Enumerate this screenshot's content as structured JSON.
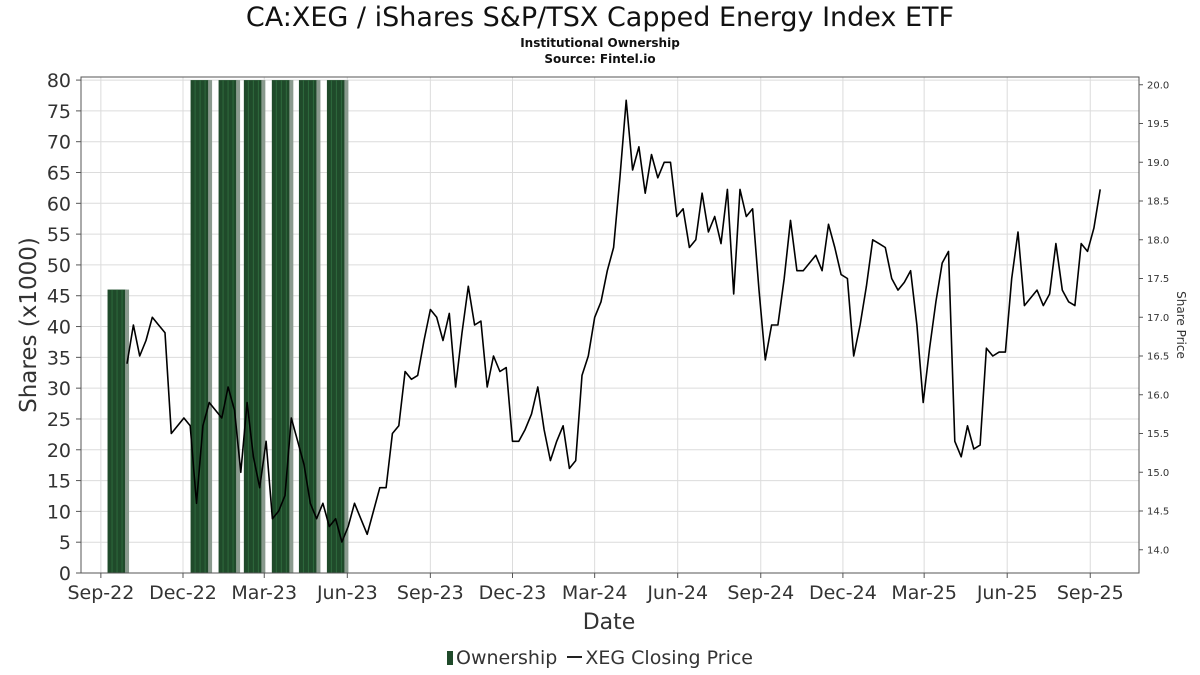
{
  "chart_data": {
    "type": "bar+line",
    "title": "CA:XEG / iShares S&P/TSX Capped Energy Index ETF",
    "subtitle": "Institutional Ownership",
    "source": "Source: Fintel.io",
    "xlabel": "Date",
    "ylabel_left": "Shares (x1000)",
    "ylabel_right": "Share Price",
    "x_tick_labels": [
      "Sep-22",
      "Dec-22",
      "Mar-23",
      "Jun-23",
      "Sep-23",
      "Dec-23",
      "Mar-24",
      "Jun-24",
      "Sep-24",
      "Dec-24",
      "Mar-25",
      "Jun-25",
      "Sep-25"
    ],
    "x_ticks": [
      "2022-09-01",
      "2022-12-01",
      "2023-03-01",
      "2023-06-01",
      "2023-09-01",
      "2023-12-01",
      "2024-03-01",
      "2024-06-01",
      "2024-09-01",
      "2024-12-01",
      "2025-03-01",
      "2025-06-01",
      "2025-09-01"
    ],
    "xlim": [
      "2022-08-10",
      "2025-10-25"
    ],
    "y_left_lim": [
      0,
      80.5
    ],
    "y_left_ticks": [
      0,
      5,
      10,
      15,
      20,
      25,
      30,
      35,
      40,
      45,
      50,
      55,
      60,
      65,
      70,
      75,
      80
    ],
    "y_right_lim": [
      13.7,
      20.1
    ],
    "y_right_ticks": [
      "14.0",
      "14.5",
      "15.0",
      "15.5",
      "16.0",
      "16.5",
      "17.0",
      "17.5",
      "18.0",
      "18.5",
      "19.0",
      "19.5",
      "20.0"
    ],
    "grid": true,
    "legend_position": "bottom-center",
    "colors": {
      "ownership": "#1f4a2a",
      "price": "#000000"
    },
    "series": [
      {
        "name": "Ownership",
        "kind": "bar",
        "points": [
          {
            "x": "2022-09-30",
            "y": 46
          },
          {
            "x": "2022-12-31",
            "y": 80
          },
          {
            "x": "2023-01-31",
            "y": 80
          },
          {
            "x": "2023-02-28",
            "y": 80
          },
          {
            "x": "2023-03-31",
            "y": 80
          },
          {
            "x": "2023-04-30",
            "y": 80
          },
          {
            "x": "2023-05-31",
            "y": 80
          }
        ]
      },
      {
        "name": "XEG Closing Price",
        "kind": "line",
        "points": [
          {
            "x": "2022-09-30",
            "y": 16.4
          },
          {
            "x": "2022-10-07",
            "y": 16.9
          },
          {
            "x": "2022-10-14",
            "y": 16.5
          },
          {
            "x": "2022-10-21",
            "y": 16.7
          },
          {
            "x": "2022-10-28",
            "y": 17.0
          },
          {
            "x": "2022-11-04",
            "y": 16.9
          },
          {
            "x": "2022-11-11",
            "y": 16.8
          },
          {
            "x": "2022-11-18",
            "y": 15.5
          },
          {
            "x": "2022-11-25",
            "y": 15.6
          },
          {
            "x": "2022-12-02",
            "y": 15.7
          },
          {
            "x": "2022-12-09",
            "y": 15.6
          },
          {
            "x": "2022-12-16",
            "y": 14.6
          },
          {
            "x": "2022-12-23",
            "y": 15.6
          },
          {
            "x": "2022-12-30",
            "y": 15.9
          },
          {
            "x": "2023-01-06",
            "y": 15.8
          },
          {
            "x": "2023-01-13",
            "y": 15.7
          },
          {
            "x": "2023-01-20",
            "y": 16.1
          },
          {
            "x": "2023-01-27",
            "y": 15.8
          },
          {
            "x": "2023-02-03",
            "y": 15.0
          },
          {
            "x": "2023-02-10",
            "y": 15.9
          },
          {
            "x": "2023-02-17",
            "y": 15.2
          },
          {
            "x": "2023-02-24",
            "y": 14.8
          },
          {
            "x": "2023-03-03",
            "y": 15.4
          },
          {
            "x": "2023-03-10",
            "y": 14.4
          },
          {
            "x": "2023-03-17",
            "y": 14.5
          },
          {
            "x": "2023-03-24",
            "y": 14.7
          },
          {
            "x": "2023-03-31",
            "y": 15.7
          },
          {
            "x": "2023-04-07",
            "y": 15.4
          },
          {
            "x": "2023-04-14",
            "y": 15.1
          },
          {
            "x": "2023-04-21",
            "y": 14.6
          },
          {
            "x": "2023-04-28",
            "y": 14.4
          },
          {
            "x": "2023-05-05",
            "y": 14.6
          },
          {
            "x": "2023-05-12",
            "y": 14.3
          },
          {
            "x": "2023-05-19",
            "y": 14.4
          },
          {
            "x": "2023-05-26",
            "y": 14.1
          },
          {
            "x": "2023-06-02",
            "y": 14.3
          },
          {
            "x": "2023-06-09",
            "y": 14.6
          },
          {
            "x": "2023-06-16",
            "y": 14.4
          },
          {
            "x": "2023-06-23",
            "y": 14.2
          },
          {
            "x": "2023-06-30",
            "y": 14.5
          },
          {
            "x": "2023-07-07",
            "y": 14.8
          },
          {
            "x": "2023-07-14",
            "y": 14.8
          },
          {
            "x": "2023-07-21",
            "y": 15.5
          },
          {
            "x": "2023-07-28",
            "y": 15.6
          },
          {
            "x": "2023-08-04",
            "y": 16.3
          },
          {
            "x": "2023-08-11",
            "y": 16.2
          },
          {
            "x": "2023-08-18",
            "y": 16.25
          },
          {
            "x": "2023-08-25",
            "y": 16.7
          },
          {
            "x": "2023-09-01",
            "y": 17.1
          },
          {
            "x": "2023-09-08",
            "y": 17.0
          },
          {
            "x": "2023-09-15",
            "y": 16.7
          },
          {
            "x": "2023-09-22",
            "y": 17.05
          },
          {
            "x": "2023-09-29",
            "y": 16.1
          },
          {
            "x": "2023-10-06",
            "y": 16.8
          },
          {
            "x": "2023-10-13",
            "y": 17.4
          },
          {
            "x": "2023-10-20",
            "y": 16.9
          },
          {
            "x": "2023-10-27",
            "y": 16.95
          },
          {
            "x": "2023-11-03",
            "y": 16.1
          },
          {
            "x": "2023-11-10",
            "y": 16.5
          },
          {
            "x": "2023-11-17",
            "y": 16.3
          },
          {
            "x": "2023-11-24",
            "y": 16.35
          },
          {
            "x": "2023-12-01",
            "y": 15.4
          },
          {
            "x": "2023-12-08",
            "y": 15.4
          },
          {
            "x": "2023-12-15",
            "y": 15.55
          },
          {
            "x": "2023-12-22",
            "y": 15.75
          },
          {
            "x": "2023-12-29",
            "y": 16.1
          },
          {
            "x": "2024-01-05",
            "y": 15.55
          },
          {
            "x": "2024-01-12",
            "y": 15.15
          },
          {
            "x": "2024-01-19",
            "y": 15.4
          },
          {
            "x": "2024-01-26",
            "y": 15.6
          },
          {
            "x": "2024-02-02",
            "y": 15.05
          },
          {
            "x": "2024-02-09",
            "y": 15.15
          },
          {
            "x": "2024-02-16",
            "y": 16.25
          },
          {
            "x": "2024-02-23",
            "y": 16.5
          },
          {
            "x": "2024-03-01",
            "y": 17.0
          },
          {
            "x": "2024-03-08",
            "y": 17.2
          },
          {
            "x": "2024-03-15",
            "y": 17.6
          },
          {
            "x": "2024-03-22",
            "y": 17.9
          },
          {
            "x": "2024-03-29",
            "y": 18.8
          },
          {
            "x": "2024-04-05",
            "y": 19.8
          },
          {
            "x": "2024-04-12",
            "y": 18.9
          },
          {
            "x": "2024-04-19",
            "y": 19.2
          },
          {
            "x": "2024-04-26",
            "y": 18.6
          },
          {
            "x": "2024-05-03",
            "y": 19.1
          },
          {
            "x": "2024-05-10",
            "y": 18.8
          },
          {
            "x": "2024-05-17",
            "y": 19.0
          },
          {
            "x": "2024-05-24",
            "y": 19.0
          },
          {
            "x": "2024-05-31",
            "y": 18.3
          },
          {
            "x": "2024-06-07",
            "y": 18.4
          },
          {
            "x": "2024-06-14",
            "y": 17.9
          },
          {
            "x": "2024-06-21",
            "y": 18.0
          },
          {
            "x": "2024-06-28",
            "y": 18.6
          },
          {
            "x": "2024-07-05",
            "y": 18.1
          },
          {
            "x": "2024-07-12",
            "y": 18.3
          },
          {
            "x": "2024-07-19",
            "y": 17.95
          },
          {
            "x": "2024-07-26",
            "y": 18.65
          },
          {
            "x": "2024-08-02",
            "y": 17.3
          },
          {
            "x": "2024-08-09",
            "y": 18.65
          },
          {
            "x": "2024-08-16",
            "y": 18.3
          },
          {
            "x": "2024-08-23",
            "y": 18.4
          },
          {
            "x": "2024-08-30",
            "y": 17.35
          },
          {
            "x": "2024-09-06",
            "y": 16.45
          },
          {
            "x": "2024-09-13",
            "y": 16.9
          },
          {
            "x": "2024-09-20",
            "y": 16.9
          },
          {
            "x": "2024-09-27",
            "y": 17.5
          },
          {
            "x": "2024-10-04",
            "y": 18.25
          },
          {
            "x": "2024-10-11",
            "y": 17.6
          },
          {
            "x": "2024-10-18",
            "y": 17.6
          },
          {
            "x": "2024-10-25",
            "y": 17.7
          },
          {
            "x": "2024-11-01",
            "y": 17.8
          },
          {
            "x": "2024-11-08",
            "y": 17.6
          },
          {
            "x": "2024-11-15",
            "y": 18.2
          },
          {
            "x": "2024-11-22",
            "y": 17.9
          },
          {
            "x": "2024-11-29",
            "y": 17.55
          },
          {
            "x": "2024-12-06",
            "y": 17.5
          },
          {
            "x": "2024-12-13",
            "y": 16.5
          },
          {
            "x": "2024-12-20",
            "y": 16.9
          },
          {
            "x": "2024-12-27",
            "y": 17.4
          },
          {
            "x": "2025-01-03",
            "y": 18.0
          },
          {
            "x": "2025-01-10",
            "y": 17.95
          },
          {
            "x": "2025-01-17",
            "y": 17.9
          },
          {
            "x": "2025-01-24",
            "y": 17.5
          },
          {
            "x": "2025-01-31",
            "y": 17.35
          },
          {
            "x": "2025-02-07",
            "y": 17.45
          },
          {
            "x": "2025-02-14",
            "y": 17.6
          },
          {
            "x": "2025-02-21",
            "y": 16.9
          },
          {
            "x": "2025-02-28",
            "y": 15.9
          },
          {
            "x": "2025-03-07",
            "y": 16.6
          },
          {
            "x": "2025-03-14",
            "y": 17.2
          },
          {
            "x": "2025-03-21",
            "y": 17.7
          },
          {
            "x": "2025-03-28",
            "y": 17.85
          },
          {
            "x": "2025-04-04",
            "y": 15.4
          },
          {
            "x": "2025-04-11",
            "y": 15.2
          },
          {
            "x": "2025-04-18",
            "y": 15.6
          },
          {
            "x": "2025-04-25",
            "y": 15.3
          },
          {
            "x": "2025-05-02",
            "y": 15.35
          },
          {
            "x": "2025-05-09",
            "y": 16.6
          },
          {
            "x": "2025-05-16",
            "y": 16.5
          },
          {
            "x": "2025-05-23",
            "y": 16.55
          },
          {
            "x": "2025-05-30",
            "y": 16.55
          },
          {
            "x": "2025-06-06",
            "y": 17.5
          },
          {
            "x": "2025-06-13",
            "y": 18.1
          },
          {
            "x": "2025-06-20",
            "y": 17.15
          },
          {
            "x": "2025-06-27",
            "y": 17.25
          },
          {
            "x": "2025-07-04",
            "y": 17.35
          },
          {
            "x": "2025-07-11",
            "y": 17.15
          },
          {
            "x": "2025-07-18",
            "y": 17.3
          },
          {
            "x": "2025-07-25",
            "y": 17.95
          },
          {
            "x": "2025-08-01",
            "y": 17.35
          },
          {
            "x": "2025-08-08",
            "y": 17.2
          },
          {
            "x": "2025-08-15",
            "y": 17.15
          },
          {
            "x": "2025-08-22",
            "y": 17.95
          },
          {
            "x": "2025-08-29",
            "y": 17.85
          },
          {
            "x": "2025-09-05",
            "y": 18.15
          },
          {
            "x": "2025-09-12",
            "y": 18.65
          }
        ]
      }
    ]
  },
  "legend": {
    "ownership_label": "Ownership",
    "price_label": "XEG Closing Price"
  }
}
